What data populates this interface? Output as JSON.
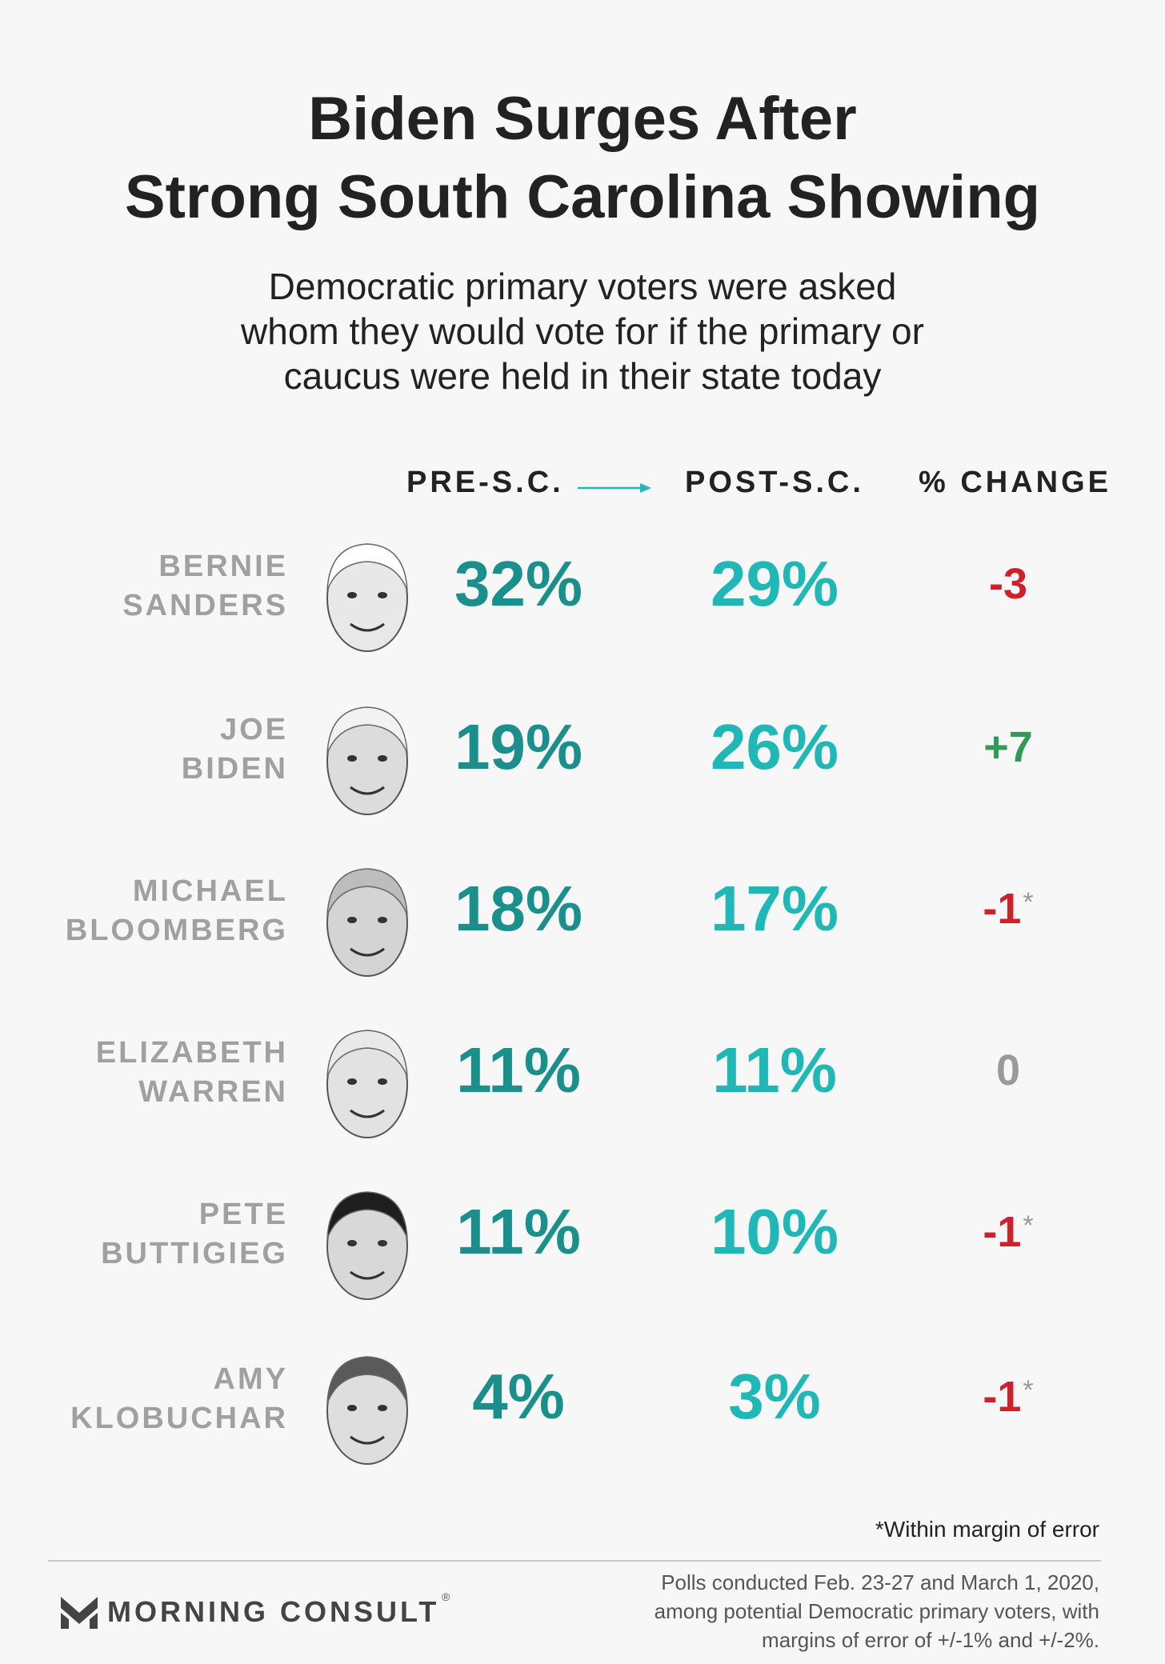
{
  "title": [
    "Biden Surges After",
    "Strong South Carolina Showing"
  ],
  "subtitle": [
    "Democratic primary voters were asked",
    "whom they would vote for if the primary or",
    "caucus were held in their state today"
  ],
  "columns": {
    "pre": "PRE-S.C.",
    "post": "POST-S.C.",
    "change": "% CHANGE"
  },
  "chart_data": {
    "type": "table",
    "columns": [
      "PRE-S.C.",
      "POST-S.C.",
      "% CHANGE"
    ],
    "rows": [
      {
        "name": [
          "BERNIE",
          "SANDERS"
        ],
        "pre": "32%",
        "post": "29%",
        "change": "-3",
        "within_margin": false,
        "direction": "neg"
      },
      {
        "name": [
          "JOE",
          "BIDEN"
        ],
        "pre": "19%",
        "post": "26%",
        "change": "+7",
        "within_margin": false,
        "direction": "pos"
      },
      {
        "name": [
          "MICHAEL",
          "BLOOMBERG"
        ],
        "pre": "18%",
        "post": "17%",
        "change": "-1",
        "within_margin": true,
        "direction": "neg"
      },
      {
        "name": [
          "ELIZABETH",
          "WARREN"
        ],
        "pre": "11%",
        "post": "11%",
        "change": "0",
        "within_margin": false,
        "direction": "zero"
      },
      {
        "name": [
          "PETE",
          "BUTTIGIEG"
        ],
        "pre": "11%",
        "post": "10%",
        "change": "-1",
        "within_margin": true,
        "direction": "neg"
      },
      {
        "name": [
          "AMY",
          "KLOBUCHAR"
        ],
        "pre": "4%",
        "post": "3%",
        "change": "-1",
        "within_margin": true,
        "direction": "neg"
      }
    ]
  },
  "star": "*",
  "footnote": "*Within margin of error",
  "source": [
    "Polls conducted Feb. 23-27 and March 1, 2020,",
    "among potential Democratic primary voters, with",
    "margins of error of +/-1% and +/-2%."
  ],
  "brand": {
    "name": "MORNING CONSULT",
    "reg": "®",
    "icon": "morning-consult-logo-icon"
  },
  "colors": {
    "pre": "#1a8f8c",
    "post": "#1fb8b6",
    "negative": "#d0202a",
    "positive": "#2e9b56",
    "neutral": "#9a9a9a",
    "name": "#a0a0a0"
  }
}
